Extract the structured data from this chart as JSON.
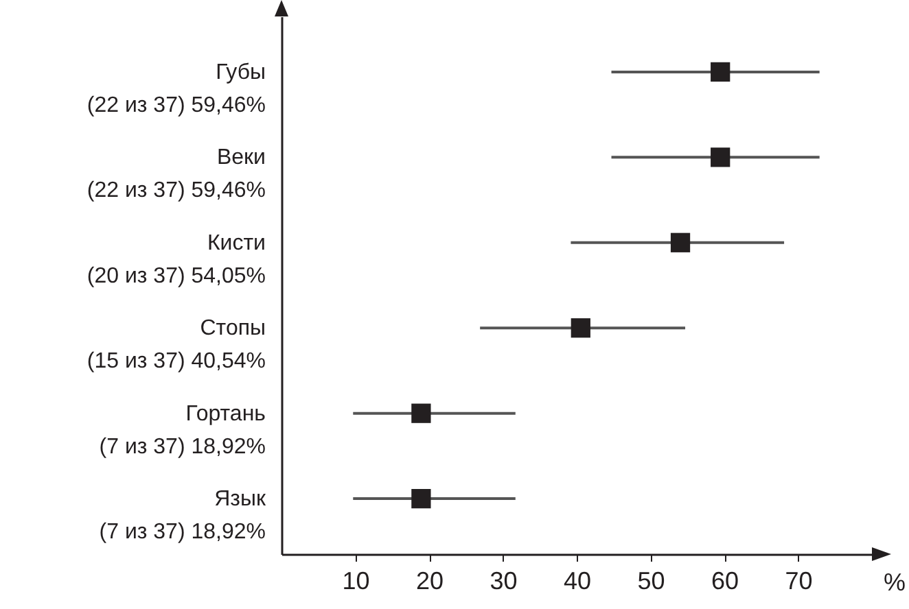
{
  "chart_data": {
    "type": "scatter",
    "orientation": "horizontal",
    "xlabel": "%",
    "categories": [
      "Губы",
      "Веки",
      "Кисти",
      "Стопы",
      "Гортань",
      "Язык"
    ],
    "series": [
      {
        "color": "#231f20",
        "values": [
          59.46,
          59.46,
          54.05,
          40.54,
          18.92,
          18.92
        ],
        "value_labels": [
          "(22 из 37) 59,46%",
          "(22 из 37) 59,46%",
          "(20 из 37) 54,05%",
          "(15 из 37) 40,54%",
          "(7 из 37) 18,92%",
          "(7 из 37) 18,92%"
        ],
        "errors": [
          [
            44.7,
            72.9
          ],
          [
            44.7,
            72.9
          ],
          [
            39.2,
            68.1
          ],
          [
            26.9,
            54.7
          ],
          [
            9.7,
            31.7
          ],
          [
            9.7,
            31.7
          ]
        ]
      }
    ],
    "xlim": [
      0,
      80
    ],
    "xticks": [
      10,
      20,
      30,
      40,
      50,
      60,
      70
    ],
    "marker": "square",
    "grid": false
  }
}
